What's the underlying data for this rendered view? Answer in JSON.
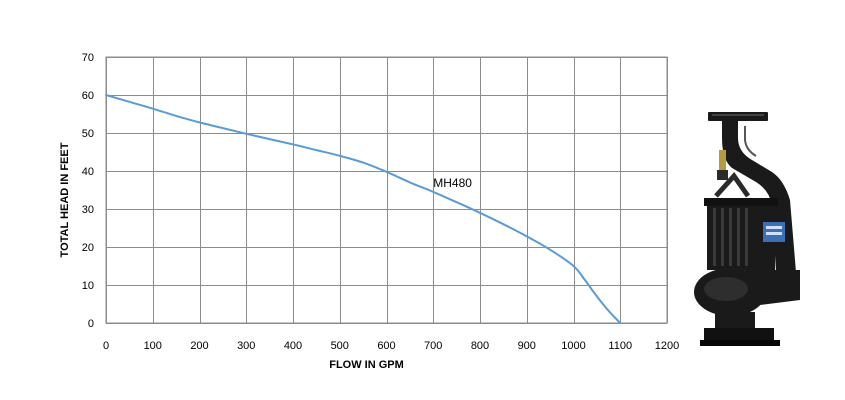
{
  "chart_data": {
    "type": "line",
    "xlabel": "FLOW IN GPM",
    "ylabel": "TOTAL HEAD IN FEET",
    "xlim": [
      0,
      1200
    ],
    "ylim": [
      0,
      70
    ],
    "xticks": [
      0,
      100,
      200,
      300,
      400,
      500,
      600,
      700,
      800,
      900,
      1000,
      1100,
      1200
    ],
    "yticks": [
      0,
      10,
      20,
      30,
      40,
      50,
      60,
      70
    ],
    "grid": true,
    "series": [
      {
        "name": "MH480",
        "color": "#5b9bd5",
        "x": [
          0,
          50,
          100,
          150,
          200,
          250,
          300,
          350,
          400,
          450,
          500,
          550,
          600,
          650,
          700,
          750,
          800,
          850,
          900,
          950,
          1000,
          1025,
          1050,
          1075,
          1100
        ],
        "y": [
          60,
          58.2,
          56.4,
          54.5,
          52.8,
          51.3,
          49.8,
          48.4,
          47,
          45.5,
          44,
          42.2,
          39.8,
          37,
          34.5,
          31.8,
          29,
          26,
          22.8,
          19.3,
          15,
          11.2,
          7,
          3.2,
          0
        ]
      }
    ]
  },
  "product_image": {
    "icon": "submersible-pump-icon",
    "logo_text": "MH480",
    "color": "#1a1a1a"
  }
}
